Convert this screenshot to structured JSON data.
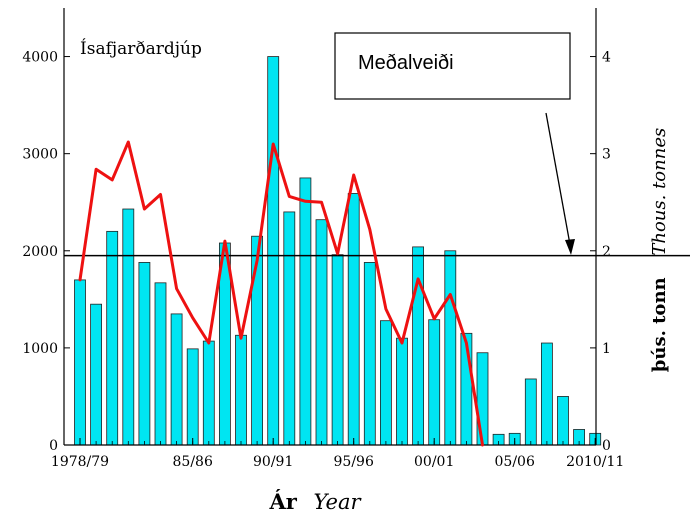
{
  "chart_data": {
    "type": "bar",
    "title": "Ísafjarðardjúp",
    "categories": [
      "1978/79",
      "1979/80",
      "1980/81",
      "1981/82",
      "1982/83",
      "1983/84",
      "1984/85",
      "1985/86",
      "1986/87",
      "1987/88",
      "1988/89",
      "1989/90",
      "1990/91",
      "1991/92",
      "1992/93",
      "1993/94",
      "1994/95",
      "1995/96",
      "1996/97",
      "1997/98",
      "1998/99",
      "1999/00",
      "2000/01",
      "2001/02",
      "2002/03",
      "2003/04",
      "2004/05",
      "2005/06",
      "2006/07",
      "2007/08",
      "2008/09",
      "2009/10",
      "2010/11"
    ],
    "x_tick_labels": [
      "1978/79",
      "85/86",
      "90/91",
      "95/96",
      "00/01",
      "05/06",
      "2010/11"
    ],
    "x_tick_categories": [
      "1978/79",
      "1985/86",
      "1990/91",
      "1995/96",
      "2000/01",
      "2005/06",
      "2010/11"
    ],
    "series": [
      {
        "type": "bar",
        "axis": "left",
        "color": "#00e5f2",
        "values": [
          1700,
          1450,
          2200,
          2430,
          1880,
          1670,
          1350,
          990,
          1070,
          2080,
          1130,
          2150,
          4000,
          2400,
          2750,
          2320,
          1960,
          2590,
          1880,
          1280,
          1100,
          2040,
          1290,
          2000,
          1150,
          950,
          110,
          120,
          680,
          1050,
          500,
          160,
          120
        ]
      },
      {
        "type": "line",
        "axis": "right",
        "color": "#ee1111",
        "values": [
          1.7,
          2.84,
          2.73,
          3.12,
          2.43,
          2.58,
          1.61,
          1.31,
          1.05,
          2.1,
          1.1,
          1.9,
          3.1,
          2.56,
          2.51,
          2.5,
          1.97,
          2.78,
          2.22,
          1.4,
          1.05,
          1.71,
          1.3,
          1.55,
          1.05,
          0,
          null,
          null,
          null,
          null,
          null,
          null,
          null
        ]
      }
    ],
    "y_left": {
      "ylim": [
        0,
        4500
      ],
      "ticks": [
        0,
        1000,
        2000,
        3000,
        4000
      ]
    },
    "y_right": {
      "ylim": [
        0,
        4.5
      ],
      "ticks": [
        0,
        1,
        2,
        3,
        4
      ],
      "label_bold": "þús. tonn",
      "label_italic": "Thous. tonnes"
    },
    "xlabel_bold": "Ár",
    "xlabel_italic": "Year",
    "reference_line": {
      "axis": "right",
      "value": 1.95,
      "color": "#000000"
    },
    "annotation": {
      "text": "Meðalveiði"
    },
    "grid": false,
    "legend": "none"
  }
}
